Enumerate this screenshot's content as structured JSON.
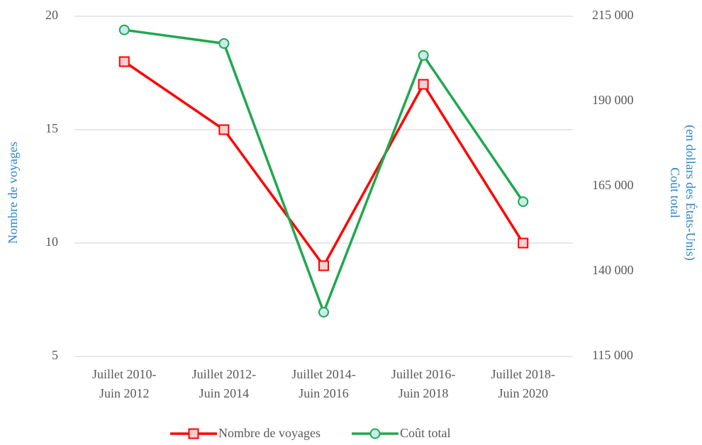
{
  "chart_data": {
    "type": "line",
    "categories": [
      "Juillet 2010-\nJuin 2012",
      "Juillet 2012-\nJuin 2014",
      "Juillet 2014-\nJuin 2016",
      "Juillet 2016-\nJuin 2018",
      "Juillet 2018-\nJuin 2020"
    ],
    "series": [
      {
        "name": "Nombre de voyages",
        "color": "#ff0000",
        "marker": "square",
        "values": [
          18,
          15,
          9,
          17,
          10
        ]
      },
      {
        "name": "Coût total",
        "color": "#1fa84f",
        "marker": "circle",
        "axis": "y2",
        "values": [
          211000,
          207000,
          128000,
          203500,
          160500
        ]
      }
    ],
    "ylabel": "Nombre  de voyages",
    "y2label": [
      "Coût total",
      "(en dollars des États-Unis)"
    ],
    "ylim": [
      5,
      20
    ],
    "yticks": [
      5,
      10,
      15,
      20
    ],
    "y2lim": [
      115000,
      215000
    ],
    "y2ticks": [
      {
        "value": 115000,
        "label": "115 000"
      },
      {
        "value": 140000,
        "label": "140 000"
      },
      {
        "value": 165000,
        "label": "165 000"
      },
      {
        "value": 190000,
        "label": "190 000"
      },
      {
        "value": 215000,
        "label": "215 000"
      }
    ],
    "grid": true,
    "legend": "bottom"
  }
}
